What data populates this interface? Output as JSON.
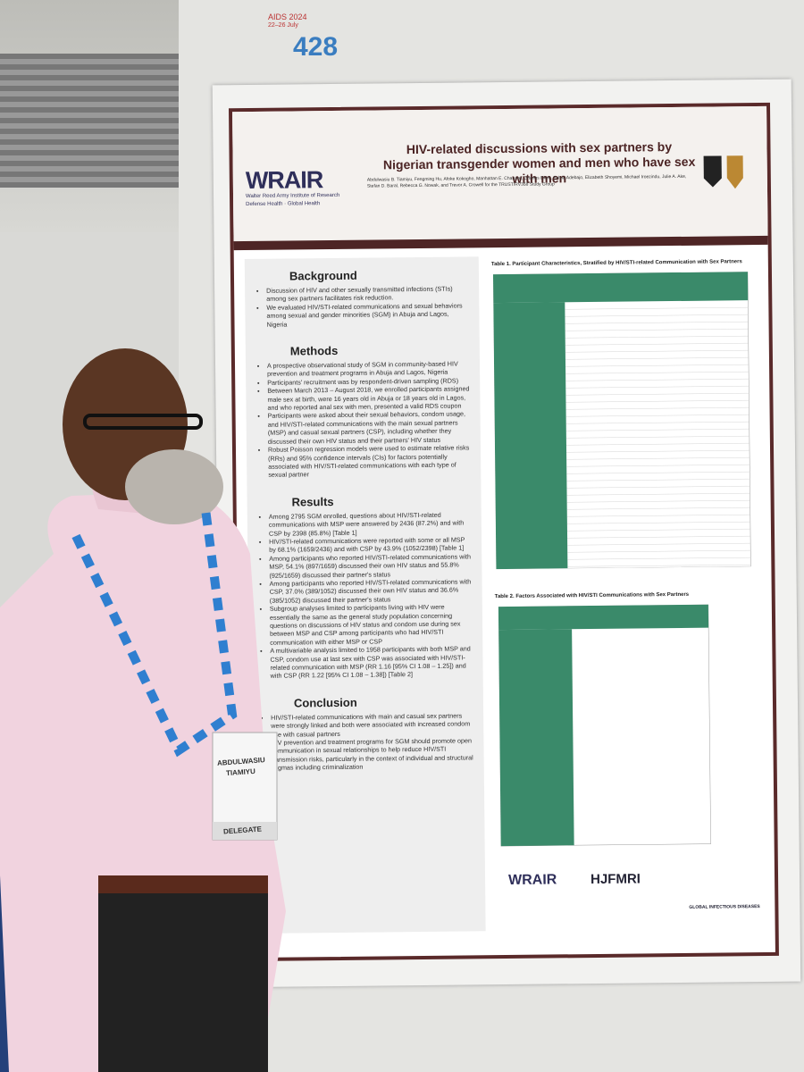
{
  "booth": {
    "number": "428",
    "conference": "AIDS 2024",
    "dates": "22–26 July"
  },
  "poster": {
    "title": "HIV-related discussions with sex partners by Nigerian transgender women and men who have sex with men",
    "authors": "Abdulwasiu B. Tiamiyu, Fengming Hu, Afoke Kokogho, Manhattan E. Charurat, Charles Ekeh, Sylvia Adebajo, Elizabeth Shoyemi, Michael Iroezindu, Julie A. Ake, Stefan D. Baral, Rebecca G. Nowak, and Trevor A. Crowell for the TRUST/RV368 Study Group",
    "logo": "WRAIR",
    "logo_sub": "Walter Reed Army Institute of Research",
    "tagline": "Defense Health · Global Health",
    "sections": [
      {
        "heading": "Background",
        "bullets": [
          "Discussion of HIV and other sexually transmitted infections (STIs) among sex partners facilitates risk reduction.",
          "We evaluated HIV/STI-related communications and sexual behaviors among sexual and gender minorities (SGM) in Abuja and Lagos, Nigeria"
        ]
      },
      {
        "heading": "Methods",
        "bullets": [
          "A prospective observational study of SGM in community-based HIV prevention and treatment programs in Abuja and Lagos, Nigeria",
          "Participants' recruitment was by respondent-driven sampling (RDS)",
          "Between March 2013 – August 2018, we enrolled participants assigned male sex at birth, were 16 years old in Abuja or 18 years old in Lagos, and who reported anal sex with men, presented a valid RDS coupon",
          "Participants were asked about their sexual behaviors, condom usage, and HIV/STI-related communications with the main sexual partners (MSP) and casual sexual partners (CSP), including whether they discussed their own HIV status and their partners' HIV status",
          "Robust Poisson regression models were used to estimate relative risks (RRs) and 95% confidence intervals (CIs) for factors potentially associated with HIV/STI-related communications with each type of sexual partner"
        ]
      },
      {
        "heading": "Results",
        "bullets": [
          "Among 2795 SGM enrolled, questions about HIV/STI-related communications with MSP were answered by 2436 (87.2%) and with CSP by 2398 (85.8%) [Table 1]",
          "HIV/STI-related communications were reported with some or all MSP by 68.1% (1659/2436) and with CSP by 43.9% (1052/2398) [Table 1]",
          "Among participants who reported HIV/STI-related communications with MSP, 54.1% (897/1659) discussed their own HIV status and 55.8% (925/1659) discussed their partner's status",
          "Among participants who reported HIV/STI-related communications with CSP, 37.0% (389/1052) discussed their own HIV status and 36.6% (385/1052) discussed their partner's status",
          "Subgroup analyses limited to participants living with HIV were essentially the same as the general study population concerning questions on discussions of HIV status and condom use during sex between MSP and CSP among participants who had HIV/STI communication with either MSP or CSP",
          "A multivariable analysis limited to 1958 participants with both MSP and CSP, condom use at last sex with CSP was associated with HIV/STI-related communication with MSP (RR 1.16 [95% CI 1.08 – 1.25]) and with CSP (RR 1.22 [95% CI 1.08 – 1.38]) [Table 2]"
        ]
      },
      {
        "heading": "Conclusion",
        "bullets": [
          "HIV/STI-related communications with main and casual sex partners were strongly linked and both were associated with increased condom use with casual partners",
          "HIV prevention and treatment programs for SGM should promote open communication in sexual relationships to help reduce HIV/STI transmission risks, particularly in the context of individual and structural stigmas including criminalization"
        ]
      }
    ],
    "table1_title": "Table 1. Participant Characteristics, Stratified by HIV/STI-related Communication with Sex Partners",
    "table2_title": "Table 2. Factors Associated with HIV/STI Communications with Sex Partners",
    "footer_logos": [
      "WRAIR",
      "HJFMRI",
      "GLOBAL INFECTIOUS DISEASES"
    ]
  },
  "badge": {
    "first_name": "ABDULWASIU",
    "last_name": "TIAMIYU",
    "role": "DELEGATE"
  }
}
